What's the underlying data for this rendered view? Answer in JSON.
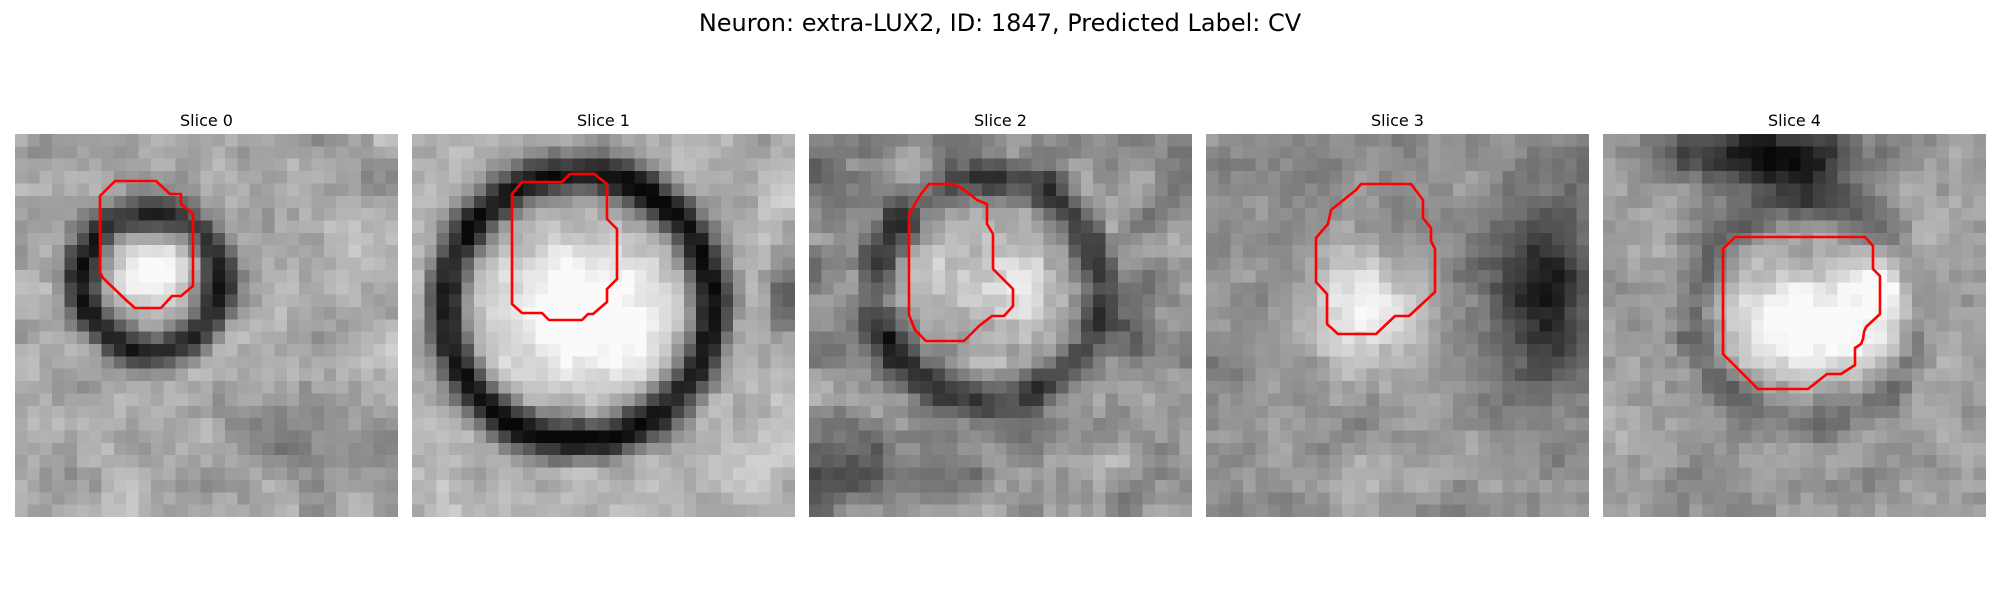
{
  "figure": {
    "title": "Neuron: extra-LUX2, ID: 1847, Predicted Label: CV",
    "colormap": "gray",
    "contour_color": "#ff0000",
    "image_grid": 31
  },
  "slices": [
    {
      "label": "Slice 0"
    },
    {
      "label": "Slice 1"
    },
    {
      "label": "Slice 2"
    },
    {
      "label": "Slice 3"
    },
    {
      "label": "Slice 4"
    }
  ]
}
